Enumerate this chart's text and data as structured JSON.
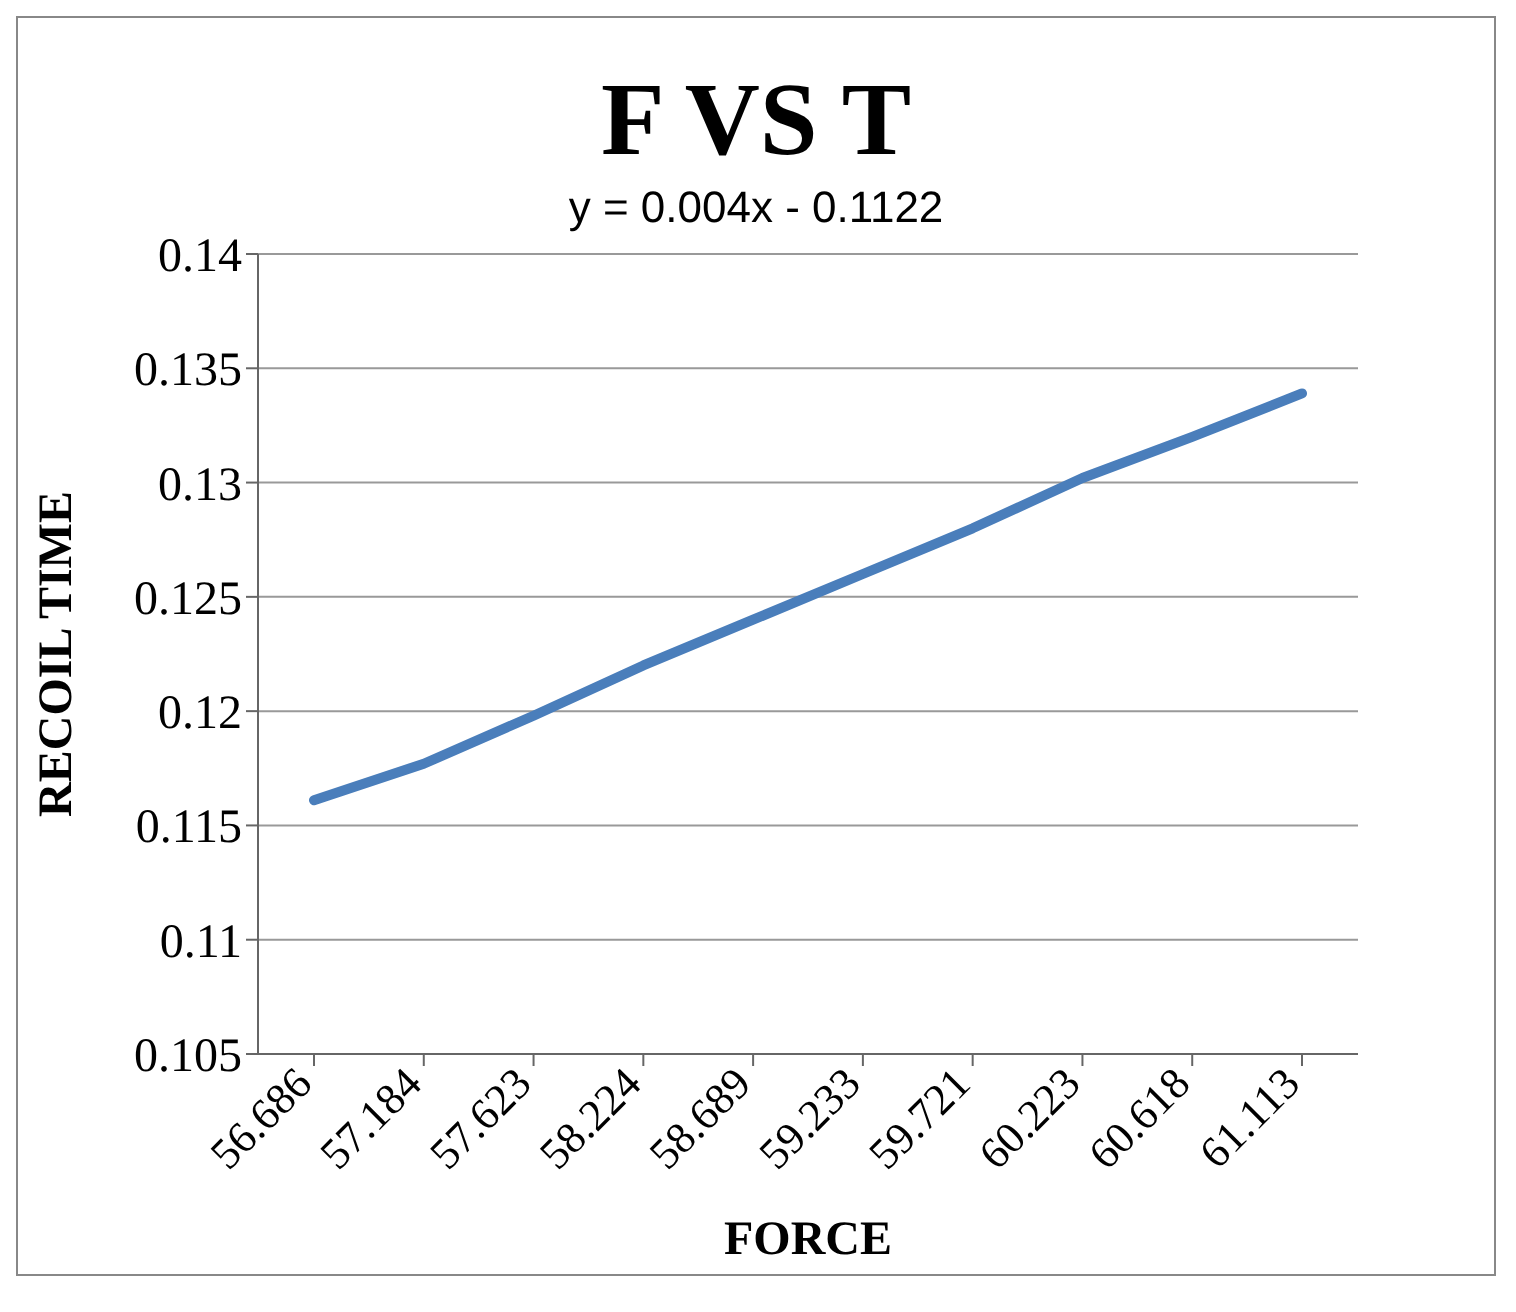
{
  "chart_data": {
    "type": "line",
    "title": "F VS T",
    "subtitle": "y = 0.004x - 0.1122",
    "xlabel": "FORCE",
    "ylabel": "RECOIL TIME",
    "categories": [
      "56.686",
      "57.184",
      "57.623",
      "58.224",
      "58.689",
      "59.233",
      "59.721",
      "60.223",
      "60.618",
      "61.113"
    ],
    "series": [
      {
        "color": "#4a7ebb",
        "values": [
          0.1161,
          0.1177,
          0.1198,
          0.122,
          0.124,
          0.126,
          0.128,
          0.1302,
          0.132,
          0.1339
        ]
      }
    ],
    "ylim": [
      0.105,
      0.14
    ],
    "yticks": [
      0.105,
      0.11,
      0.115,
      0.12,
      0.125,
      0.13,
      0.135,
      0.14
    ],
    "grid": "y",
    "legend": false,
    "marker": "none",
    "line_style": "solid"
  }
}
